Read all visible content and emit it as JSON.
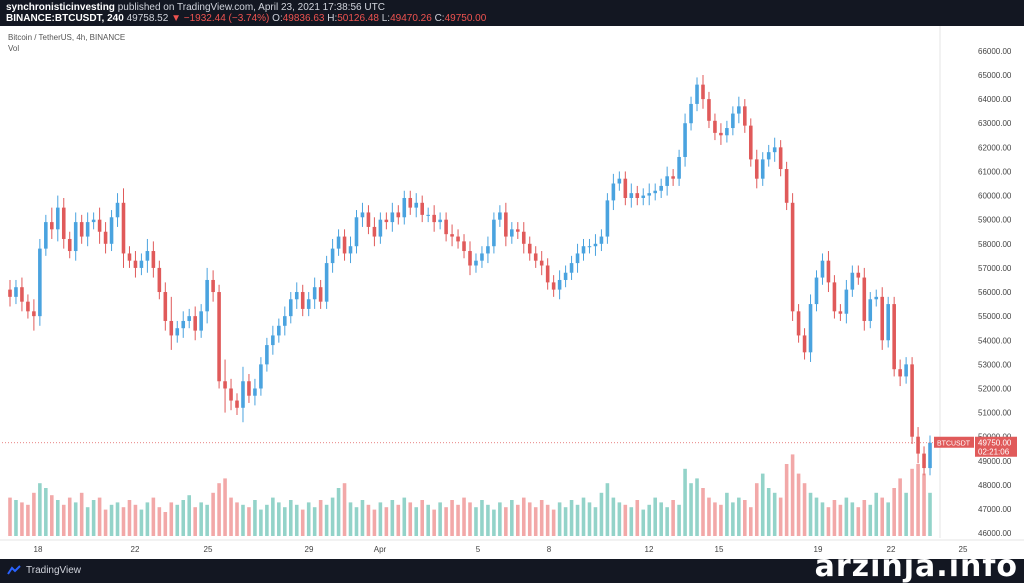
{
  "header": {
    "author": "synchronisticinvesting",
    "published_text": "published on TradingView.com, April 23, 2021 17:38:56 UTC",
    "symbol": "BINANCE:BTCUSDT, 240",
    "last": "49758.52",
    "change": "−1932.44 (−3.74%)",
    "o_label": "O:",
    "o_value": "49836.63",
    "h_label": "H:",
    "h_value": "50126.48",
    "l_label": "L:",
    "l_value": "49470.26",
    "c_label": "C:",
    "c_value": "49750.00"
  },
  "legend": {
    "title": "Bitcoin / TetherUS, 4h, BINANCE",
    "vol": "Vol"
  },
  "price_tag": {
    "symbol": "BTCUSDT",
    "price": "49750.00",
    "countdown": "02:21:06"
  },
  "footer": {
    "brand": "TradingView",
    "watermark": "arzinja.info"
  },
  "colors": {
    "up": "#4aa3df",
    "down": "#e05a5a",
    "vol_up": "#93d3c9",
    "vol_down": "#f2a8a8",
    "tag_bg": "#e05a5a"
  },
  "chart_data": {
    "type": "candlestick",
    "y_ticks": [
      "66000.00",
      "65000.00",
      "64000.00",
      "63000.00",
      "62000.00",
      "61000.00",
      "60000.00",
      "59000.00",
      "58000.00",
      "57000.00",
      "56000.00",
      "55000.00",
      "54000.00",
      "53000.00",
      "52000.00",
      "51000.00",
      "50000.00",
      "49000.00",
      "48000.00",
      "47000.00",
      "46000.00"
    ],
    "ylim": [
      45800,
      66700
    ],
    "x_ticks": [
      "18",
      "22",
      "25",
      "29",
      "Apr",
      "5",
      "8",
      "12",
      "15",
      "19",
      "22",
      "25"
    ],
    "last_price": 49750,
    "closes": [
      55800,
      56200,
      55600,
      55200,
      55000,
      57800,
      58900,
      58600,
      59500,
      58200,
      57700,
      58900,
      58300,
      58900,
      59000,
      58500,
      58000,
      59100,
      59700,
      57600,
      57300,
      57000,
      57300,
      57700,
      57000,
      56000,
      54800,
      54200,
      54500,
      54800,
      55000,
      54400,
      55200,
      56500,
      56000,
      52300,
      52000,
      51500,
      51200,
      52300,
      51700,
      52000,
      53000,
      53800,
      54200,
      54600,
      55000,
      55700,
      56000,
      55300,
      55700,
      56200,
      55600,
      57200,
      57800,
      58300,
      57600,
      57900,
      59100,
      59300,
      58700,
      58300,
      59000,
      58900,
      59300,
      59100,
      59900,
      59500,
      59700,
      59200,
      59200,
      58900,
      59000,
      58400,
      58300,
      58100,
      57700,
      57100,
      57300,
      57600,
      57900,
      59000,
      59300,
      58300,
      58600,
      58500,
      58000,
      57600,
      57300,
      57100,
      56400,
      56100,
      56500,
      56800,
      57200,
      57600,
      57900,
      57900,
      58000,
      58300,
      59800,
      60500,
      60700,
      59900,
      60100,
      59900,
      60000,
      60100,
      60200,
      60400,
      60800,
      60700,
      61600,
      63000,
      63800,
      64600,
      64000,
      63100,
      62600,
      62500,
      62800,
      63400,
      63700,
      62900,
      61500,
      60700,
      61500,
      61800,
      62000,
      61100,
      59700,
      55200,
      54200,
      53500,
      55500,
      56600,
      57300,
      56400,
      55200,
      55100,
      56100,
      56800,
      56600,
      54800,
      55700,
      55800,
      54000,
      55500,
      52800,
      52500,
      53000,
      50000,
      49300,
      48700,
      49750
    ],
    "highs_extra": [
      400,
      300,
      400,
      300,
      500,
      400,
      300,
      600,
      500,
      400,
      300,
      400,
      300,
      400,
      300,
      500,
      400,
      300,
      400,
      600,
      300,
      400,
      300,
      500,
      400,
      300,
      400,
      1000,
      300,
      400,
      300,
      400,
      300,
      500,
      400,
      300,
      900,
      400,
      300,
      600,
      300,
      400,
      300,
      300,
      400,
      300,
      400,
      300,
      400,
      300,
      300,
      400,
      300,
      300,
      400,
      300,
      300,
      400,
      300,
      400,
      300,
      400,
      300,
      300,
      400,
      300,
      300,
      300,
      400,
      300,
      300,
      400,
      300,
      300,
      400,
      300,
      300,
      400,
      300,
      300,
      400,
      300,
      300,
      400,
      300,
      300,
      400,
      300,
      300,
      400,
      300,
      300,
      400,
      300,
      300,
      400,
      300,
      300,
      400,
      300,
      300,
      400,
      300,
      300,
      400,
      300,
      300,
      400,
      300,
      300,
      400,
      300,
      300,
      400,
      300,
      300,
      400,
      300,
      300,
      400,
      300,
      300,
      400,
      300,
      300,
      400,
      300,
      300,
      400,
      300,
      300,
      400,
      300,
      300,
      400,
      300,
      300,
      400,
      300,
      300,
      400,
      300,
      300,
      400,
      300,
      300,
      400,
      300,
      300,
      400,
      300,
      300,
      400,
      300,
      300
    ],
    "lows_extra": [
      400,
      300,
      400,
      300,
      600,
      400,
      300,
      400,
      500,
      400,
      300,
      400,
      300,
      400,
      300,
      500,
      400,
      300,
      400,
      600,
      300,
      400,
      300,
      500,
      400,
      300,
      400,
      600,
      300,
      400,
      300,
      400,
      300,
      500,
      400,
      300,
      1000,
      400,
      300,
      600,
      300,
      400,
      300,
      300,
      400,
      300,
      400,
      300,
      400,
      300,
      300,
      400,
      300,
      300,
      400,
      300,
      300,
      400,
      300,
      400,
      300,
      400,
      300,
      300,
      400,
      300,
      300,
      300,
      400,
      300,
      300,
      400,
      300,
      300,
      400,
      300,
      300,
      400,
      300,
      300,
      400,
      300,
      300,
      400,
      300,
      300,
      400,
      300,
      300,
      400,
      300,
      300,
      400,
      300,
      300,
      400,
      300,
      300,
      400,
      300,
      300,
      400,
      300,
      300,
      400,
      300,
      300,
      400,
      300,
      300,
      400,
      300,
      300,
      400,
      300,
      300,
      400,
      300,
      300,
      400,
      300,
      300,
      400,
      300,
      300,
      400,
      300,
      300,
      400,
      300,
      300,
      400,
      300,
      300,
      400,
      300,
      300,
      400,
      300,
      300,
      400,
      300,
      300,
      400,
      300,
      300,
      400,
      300,
      300,
      400,
      300,
      300,
      400,
      300,
      300
    ],
    "volumes": [
      16,
      15,
      14,
      13,
      18,
      22,
      20,
      17,
      15,
      13,
      16,
      14,
      18,
      12,
      15,
      16,
      11,
      13,
      14,
      12,
      15,
      13,
      11,
      14,
      16,
      12,
      10,
      14,
      13,
      15,
      17,
      12,
      14,
      13,
      18,
      22,
      24,
      16,
      14,
      13,
      12,
      15,
      11,
      13,
      16,
      14,
      12,
      15,
      13,
      11,
      14,
      12,
      15,
      13,
      16,
      20,
      22,
      14,
      12,
      15,
      13,
      11,
      14,
      12,
      15,
      13,
      16,
      14,
      12,
      15,
      13,
      11,
      14,
      12,
      15,
      13,
      16,
      14,
      12,
      15,
      13,
      11,
      14,
      12,
      15,
      13,
      16,
      14,
      12,
      15,
      13,
      11,
      14,
      12,
      15,
      13,
      16,
      14,
      12,
      18,
      22,
      16,
      14,
      13,
      12,
      15,
      11,
      13,
      16,
      14,
      12,
      15,
      13,
      28,
      22,
      24,
      20,
      16,
      14,
      13,
      18,
      14,
      16,
      15,
      12,
      22,
      26,
      20,
      18,
      16,
      30,
      34,
      26,
      22,
      18,
      16,
      14,
      12,
      15,
      13,
      16,
      14,
      12,
      15,
      13,
      18,
      16,
      14,
      20,
      24,
      18,
      28,
      30,
      26,
      18,
      10
    ]
  }
}
